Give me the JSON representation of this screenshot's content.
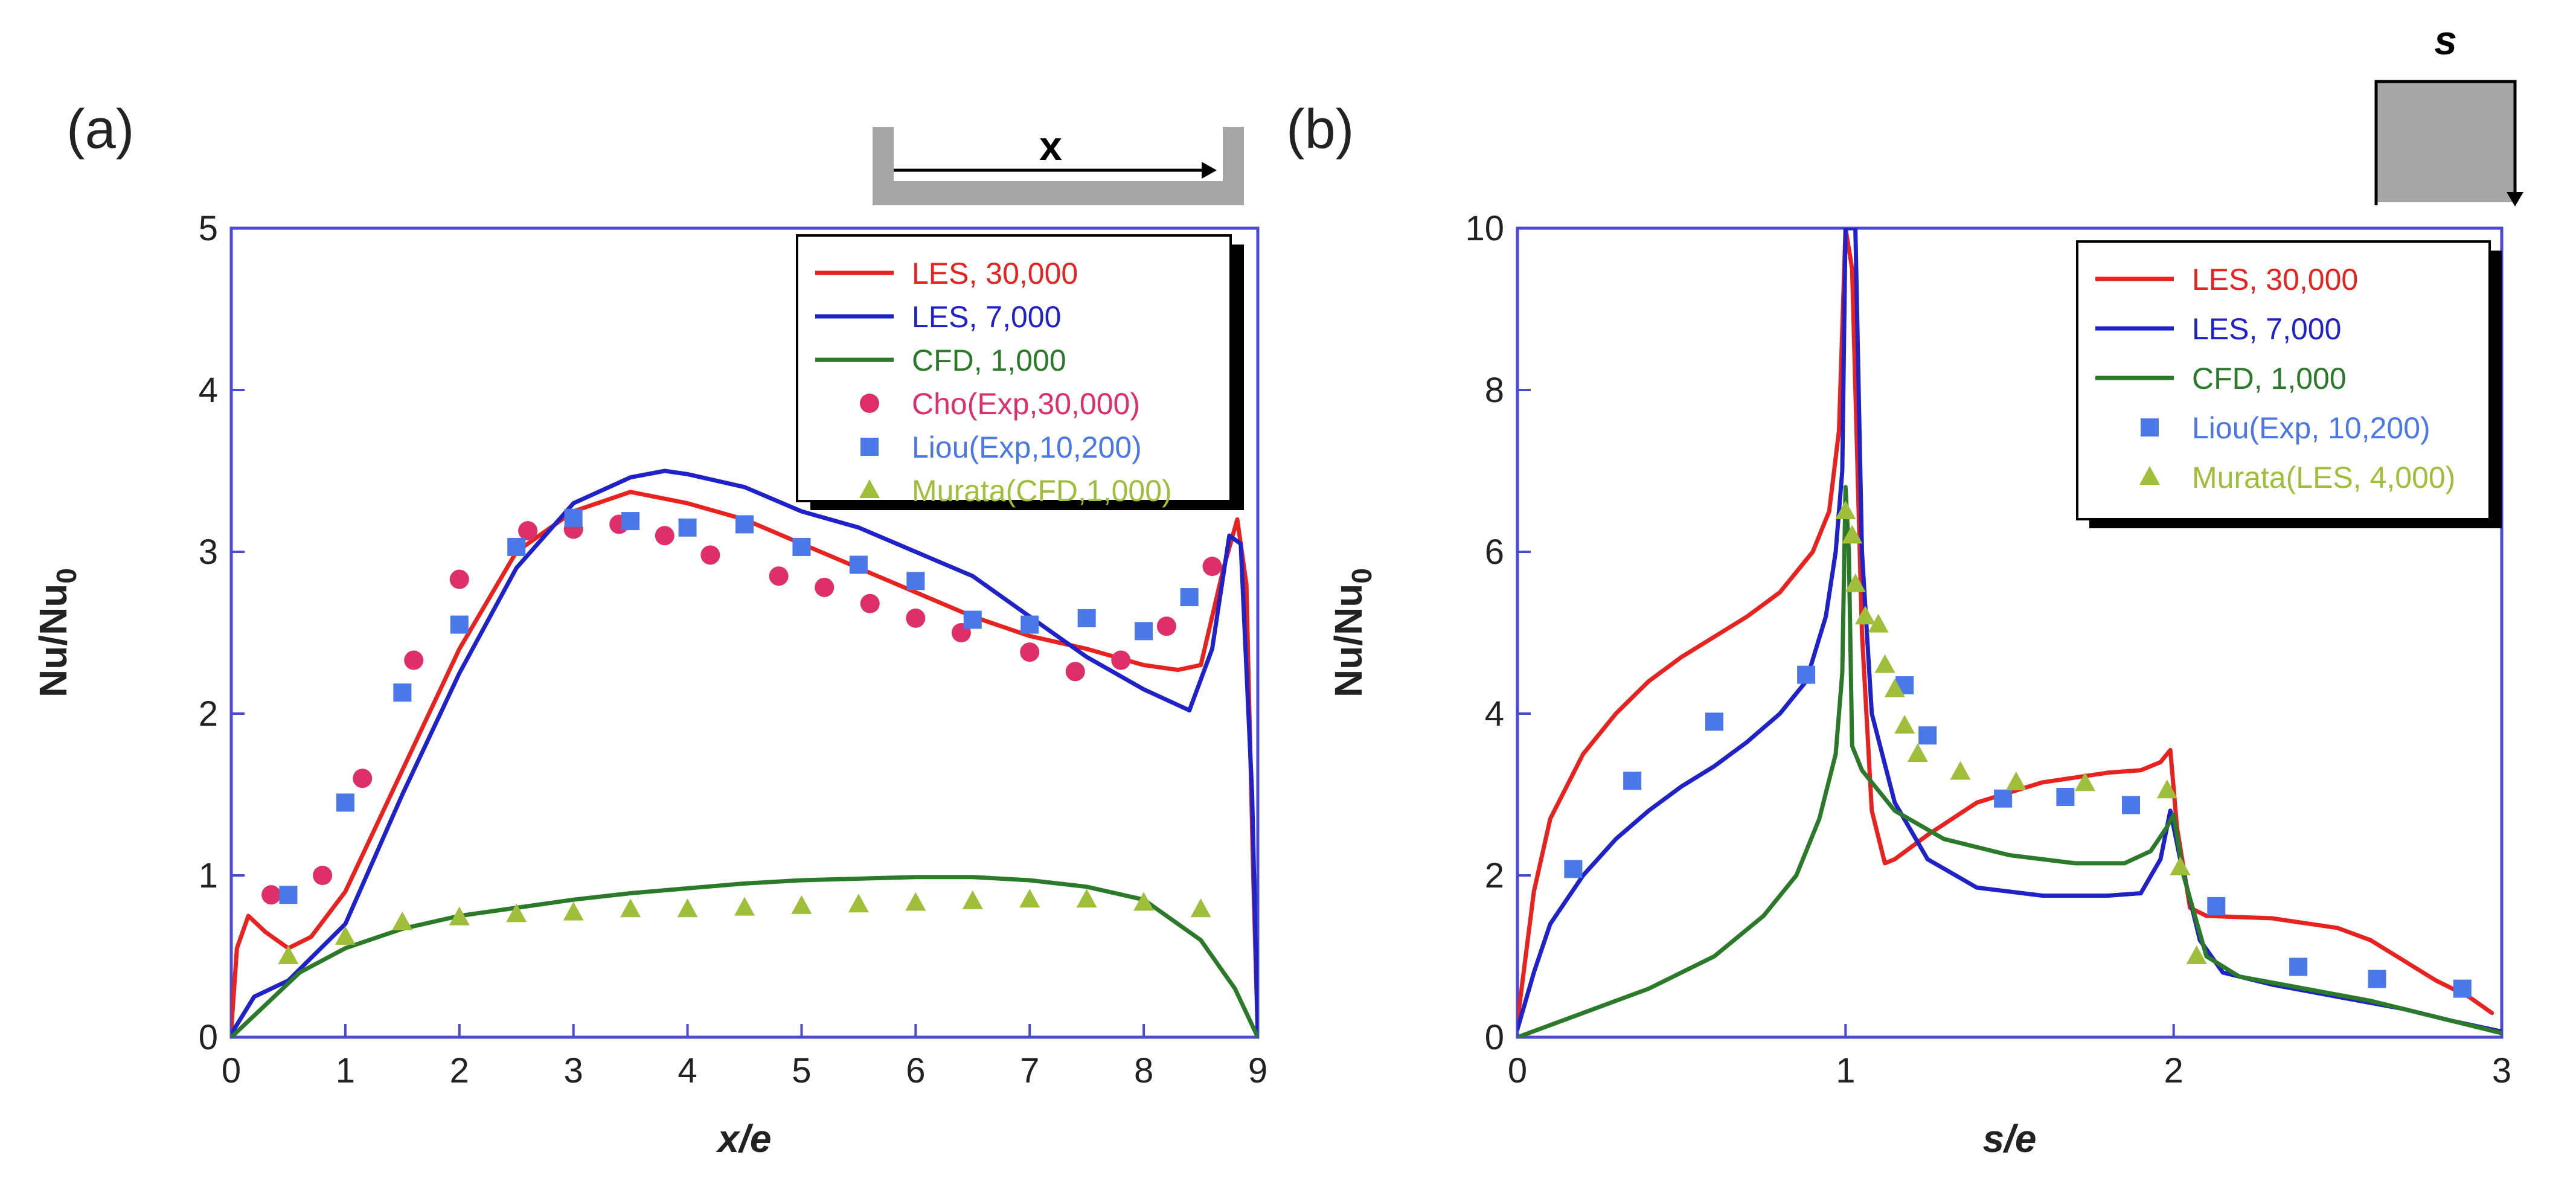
{
  "chart_data": [
    {
      "panel": "(a)",
      "type": "line",
      "xlabel": "x/e",
      "ylabel": "Nu/Nu",
      "ylabel_subscript": "0",
      "xlim": [
        0,
        9
      ],
      "ylim": [
        0,
        5
      ],
      "xticks": [
        0,
        1,
        2,
        3,
        4,
        5,
        6,
        7,
        8,
        9
      ],
      "yticks": [
        0,
        1,
        2,
        3,
        4,
        5
      ],
      "inset_label": "x",
      "legend_position": "top-right",
      "series": [
        {
          "name": "LES, 30,000",
          "kind": "line",
          "color": "#e8231f",
          "points": [
            [
              0,
              0.05
            ],
            [
              0.05,
              0.55
            ],
            [
              0.15,
              0.75
            ],
            [
              0.3,
              0.65
            ],
            [
              0.5,
              0.55
            ],
            [
              0.7,
              0.62
            ],
            [
              1.0,
              0.9
            ],
            [
              1.5,
              1.65
            ],
            [
              2.0,
              2.4
            ],
            [
              2.5,
              3.0
            ],
            [
              3.0,
              3.25
            ],
            [
              3.5,
              3.37
            ],
            [
              4.0,
              3.3
            ],
            [
              4.5,
              3.2
            ],
            [
              5.0,
              3.05
            ],
            [
              5.5,
              2.9
            ],
            [
              6.0,
              2.75
            ],
            [
              6.5,
              2.6
            ],
            [
              7.0,
              2.48
            ],
            [
              7.5,
              2.4
            ],
            [
              8.0,
              2.3
            ],
            [
              8.3,
              2.27
            ],
            [
              8.5,
              2.3
            ],
            [
              8.7,
              2.9
            ],
            [
              8.82,
              3.2
            ],
            [
              8.9,
              2.8
            ],
            [
              8.96,
              1.0
            ],
            [
              9.0,
              0.0
            ]
          ]
        },
        {
          "name": "LES, 7,000",
          "kind": "line",
          "color": "#1f22c8",
          "points": [
            [
              0,
              0.02
            ],
            [
              0.2,
              0.25
            ],
            [
              0.5,
              0.35
            ],
            [
              1.0,
              0.7
            ],
            [
              1.5,
              1.5
            ],
            [
              2.0,
              2.25
            ],
            [
              2.5,
              2.9
            ],
            [
              3.0,
              3.3
            ],
            [
              3.5,
              3.46
            ],
            [
              3.8,
              3.5
            ],
            [
              4.0,
              3.48
            ],
            [
              4.5,
              3.4
            ],
            [
              5.0,
              3.25
            ],
            [
              5.5,
              3.15
            ],
            [
              6.0,
              3.0
            ],
            [
              6.5,
              2.85
            ],
            [
              7.0,
              2.6
            ],
            [
              7.5,
              2.35
            ],
            [
              8.0,
              2.15
            ],
            [
              8.4,
              2.02
            ],
            [
              8.6,
              2.4
            ],
            [
              8.75,
              3.1
            ],
            [
              8.85,
              3.05
            ],
            [
              8.95,
              1.5
            ],
            [
              9.0,
              0.0
            ]
          ]
        },
        {
          "name": "CFD, 1,000",
          "kind": "line",
          "color": "#2a7a2a",
          "points": [
            [
              0,
              0.0
            ],
            [
              0.3,
              0.2
            ],
            [
              0.6,
              0.4
            ],
            [
              1.0,
              0.55
            ],
            [
              1.5,
              0.67
            ],
            [
              2.0,
              0.75
            ],
            [
              2.5,
              0.8
            ],
            [
              3.0,
              0.85
            ],
            [
              3.5,
              0.89
            ],
            [
              4.0,
              0.92
            ],
            [
              4.5,
              0.95
            ],
            [
              5.0,
              0.97
            ],
            [
              5.5,
              0.98
            ],
            [
              6.0,
              0.99
            ],
            [
              6.5,
              0.99
            ],
            [
              7.0,
              0.97
            ],
            [
              7.5,
              0.93
            ],
            [
              8.0,
              0.85
            ],
            [
              8.5,
              0.6
            ],
            [
              8.8,
              0.3
            ],
            [
              9.0,
              0.0
            ]
          ]
        },
        {
          "name": "Cho(Exp,30,000)",
          "kind": "circle",
          "color": "#de2f6b",
          "points": [
            [
              0.35,
              0.88
            ],
            [
              0.8,
              1.0
            ],
            [
              1.15,
              1.6
            ],
            [
              1.6,
              2.33
            ],
            [
              2.0,
              2.83
            ],
            [
              2.6,
              3.13
            ],
            [
              3.0,
              3.14
            ],
            [
              3.4,
              3.17
            ],
            [
              3.8,
              3.1
            ],
            [
              4.2,
              2.98
            ],
            [
              4.8,
              2.85
            ],
            [
              5.2,
              2.78
            ],
            [
              5.6,
              2.68
            ],
            [
              6.0,
              2.59
            ],
            [
              6.4,
              2.5
            ],
            [
              7.0,
              2.38
            ],
            [
              7.4,
              2.26
            ],
            [
              7.8,
              2.33
            ],
            [
              8.2,
              2.54
            ],
            [
              8.6,
              2.91
            ]
          ]
        },
        {
          "name": "Liou(Exp,10,200)",
          "kind": "square",
          "color": "#4a78e8",
          "points": [
            [
              0.5,
              0.88
            ],
            [
              1.0,
              1.45
            ],
            [
              1.5,
              2.13
            ],
            [
              2.0,
              2.55
            ],
            [
              2.5,
              3.03
            ],
            [
              3.0,
              3.21
            ],
            [
              3.5,
              3.19
            ],
            [
              4.0,
              3.15
            ],
            [
              4.5,
              3.17
            ],
            [
              5.0,
              3.03
            ],
            [
              5.5,
              2.92
            ],
            [
              6.0,
              2.82
            ],
            [
              6.5,
              2.58
            ],
            [
              7.0,
              2.55
            ],
            [
              7.5,
              2.59
            ],
            [
              8.0,
              2.51
            ],
            [
              8.4,
              2.72
            ]
          ]
        },
        {
          "name": "Murata(CFD,1,000)",
          "kind": "triangle",
          "color": "#9fbf3a",
          "points": [
            [
              0.5,
              0.5
            ],
            [
              1.0,
              0.62
            ],
            [
              1.5,
              0.71
            ],
            [
              2.0,
              0.74
            ],
            [
              2.5,
              0.76
            ],
            [
              3.0,
              0.77
            ],
            [
              3.5,
              0.79
            ],
            [
              4.0,
              0.79
            ],
            [
              4.5,
              0.8
            ],
            [
              5.0,
              0.81
            ],
            [
              5.5,
              0.82
            ],
            [
              6.0,
              0.83
            ],
            [
              6.5,
              0.84
            ],
            [
              7.0,
              0.85
            ],
            [
              7.5,
              0.85
            ],
            [
              8.0,
              0.83
            ],
            [
              8.5,
              0.79
            ]
          ]
        }
      ]
    },
    {
      "panel": "(b)",
      "type": "line",
      "xlabel": "s/e",
      "ylabel": "Nu/Nu",
      "ylabel_subscript": "0",
      "xlim": [
        0,
        3
      ],
      "ylim": [
        0,
        10
      ],
      "xticks": [
        0,
        1,
        2,
        3
      ],
      "yticks": [
        0,
        2,
        4,
        6,
        8,
        10
      ],
      "inset_label": "s",
      "legend_position": "top-right",
      "series": [
        {
          "name": "LES,  30,000",
          "kind": "line",
          "color": "#e8231f",
          "points": [
            [
              0,
              0.2
            ],
            [
              0.05,
              1.8
            ],
            [
              0.1,
              2.7
            ],
            [
              0.2,
              3.5
            ],
            [
              0.3,
              4.0
            ],
            [
              0.4,
              4.4
            ],
            [
              0.5,
              4.7
            ],
            [
              0.6,
              4.95
            ],
            [
              0.7,
              5.2
            ],
            [
              0.8,
              5.5
            ],
            [
              0.9,
              6.0
            ],
            [
              0.95,
              6.5
            ],
            [
              0.98,
              7.5
            ],
            [
              1.0,
              10.0
            ],
            [
              1.02,
              9.5
            ],
            [
              1.05,
              5.0
            ],
            [
              1.08,
              2.8
            ],
            [
              1.12,
              2.15
            ],
            [
              1.15,
              2.2
            ],
            [
              1.25,
              2.5
            ],
            [
              1.4,
              2.9
            ],
            [
              1.6,
              3.15
            ],
            [
              1.8,
              3.27
            ],
            [
              1.9,
              3.3
            ],
            [
              1.96,
              3.4
            ],
            [
              1.99,
              3.55
            ],
            [
              2.01,
              2.6
            ],
            [
              2.05,
              1.6
            ],
            [
              2.1,
              1.5
            ],
            [
              2.3,
              1.47
            ],
            [
              2.5,
              1.35
            ],
            [
              2.6,
              1.2
            ],
            [
              2.7,
              0.95
            ],
            [
              2.8,
              0.7
            ],
            [
              2.9,
              0.5
            ],
            [
              2.97,
              0.3
            ]
          ]
        },
        {
          "name": "LES, 7,000",
          "kind": "line",
          "color": "#1f22c8",
          "points": [
            [
              0,
              0.1
            ],
            [
              0.05,
              0.8
            ],
            [
              0.1,
              1.4
            ],
            [
              0.2,
              2.0
            ],
            [
              0.3,
              2.45
            ],
            [
              0.4,
              2.8
            ],
            [
              0.5,
              3.1
            ],
            [
              0.6,
              3.35
            ],
            [
              0.7,
              3.65
            ],
            [
              0.8,
              4.0
            ],
            [
              0.88,
              4.4
            ],
            [
              0.94,
              5.2
            ],
            [
              0.97,
              6.0
            ],
            [
              0.99,
              7.0
            ],
            [
              1.0,
              10.0
            ],
            [
              1.03,
              10.0
            ],
            [
              1.05,
              6.0
            ],
            [
              1.08,
              4.0
            ],
            [
              1.15,
              2.9
            ],
            [
              1.25,
              2.2
            ],
            [
              1.4,
              1.85
            ],
            [
              1.6,
              1.75
            ],
            [
              1.8,
              1.75
            ],
            [
              1.9,
              1.78
            ],
            [
              1.96,
              2.2
            ],
            [
              1.99,
              2.8
            ],
            [
              2.02,
              2.2
            ],
            [
              2.08,
              1.2
            ],
            [
              2.15,
              0.8
            ],
            [
              2.3,
              0.65
            ],
            [
              2.5,
              0.5
            ],
            [
              2.7,
              0.35
            ],
            [
              2.85,
              0.2
            ],
            [
              3.0,
              0.07
            ]
          ]
        },
        {
          "name": "CFD, 1,000",
          "kind": "line",
          "color": "#2a7a2a",
          "points": [
            [
              0,
              0.0
            ],
            [
              0.2,
              0.3
            ],
            [
              0.4,
              0.6
            ],
            [
              0.6,
              1.0
            ],
            [
              0.75,
              1.5
            ],
            [
              0.85,
              2.0
            ],
            [
              0.92,
              2.7
            ],
            [
              0.97,
              3.5
            ],
            [
              0.99,
              4.5
            ],
            [
              1.0,
              6.8
            ],
            [
              1.01,
              6.0
            ],
            [
              1.02,
              3.6
            ],
            [
              1.05,
              3.3
            ],
            [
              1.15,
              2.8
            ],
            [
              1.3,
              2.45
            ],
            [
              1.5,
              2.25
            ],
            [
              1.7,
              2.15
            ],
            [
              1.85,
              2.15
            ],
            [
              1.93,
              2.3
            ],
            [
              1.98,
              2.6
            ],
            [
              2.0,
              2.75
            ],
            [
              2.03,
              2.0
            ],
            [
              2.1,
              1.0
            ],
            [
              2.2,
              0.75
            ],
            [
              2.4,
              0.6
            ],
            [
              2.6,
              0.45
            ],
            [
              2.8,
              0.25
            ],
            [
              3.0,
              0.05
            ]
          ]
        },
        {
          "name": "Liou(Exp, 10,200)",
          "kind": "square",
          "color": "#4a78e8",
          "points": [
            [
              0.17,
              2.08
            ],
            [
              0.35,
              3.17
            ],
            [
              0.6,
              3.9
            ],
            [
              0.88,
              4.48
            ],
            [
              1.18,
              4.35
            ],
            [
              1.25,
              3.73
            ],
            [
              1.48,
              2.95
            ],
            [
              1.67,
              2.97
            ],
            [
              1.87,
              2.87
            ],
            [
              2.13,
              1.62
            ],
            [
              2.38,
              0.87
            ],
            [
              2.62,
              0.72
            ],
            [
              2.88,
              0.6
            ]
          ]
        },
        {
          "name": "Murata(LES, 4,000)",
          "kind": "triangle",
          "color": "#9fbf3a",
          "points": [
            [
              1.0,
              6.5
            ],
            [
              1.02,
              6.2
            ],
            [
              1.03,
              5.6
            ],
            [
              1.06,
              5.2
            ],
            [
              1.1,
              5.1
            ],
            [
              1.12,
              4.6
            ],
            [
              1.15,
              4.3
            ],
            [
              1.18,
              3.85
            ],
            [
              1.22,
              3.5
            ],
            [
              1.35,
              3.28
            ],
            [
              1.52,
              3.15
            ],
            [
              1.73,
              3.14
            ],
            [
              1.98,
              3.05
            ],
            [
              2.02,
              2.1
            ],
            [
              2.07,
              1.0
            ]
          ]
        }
      ]
    }
  ]
}
